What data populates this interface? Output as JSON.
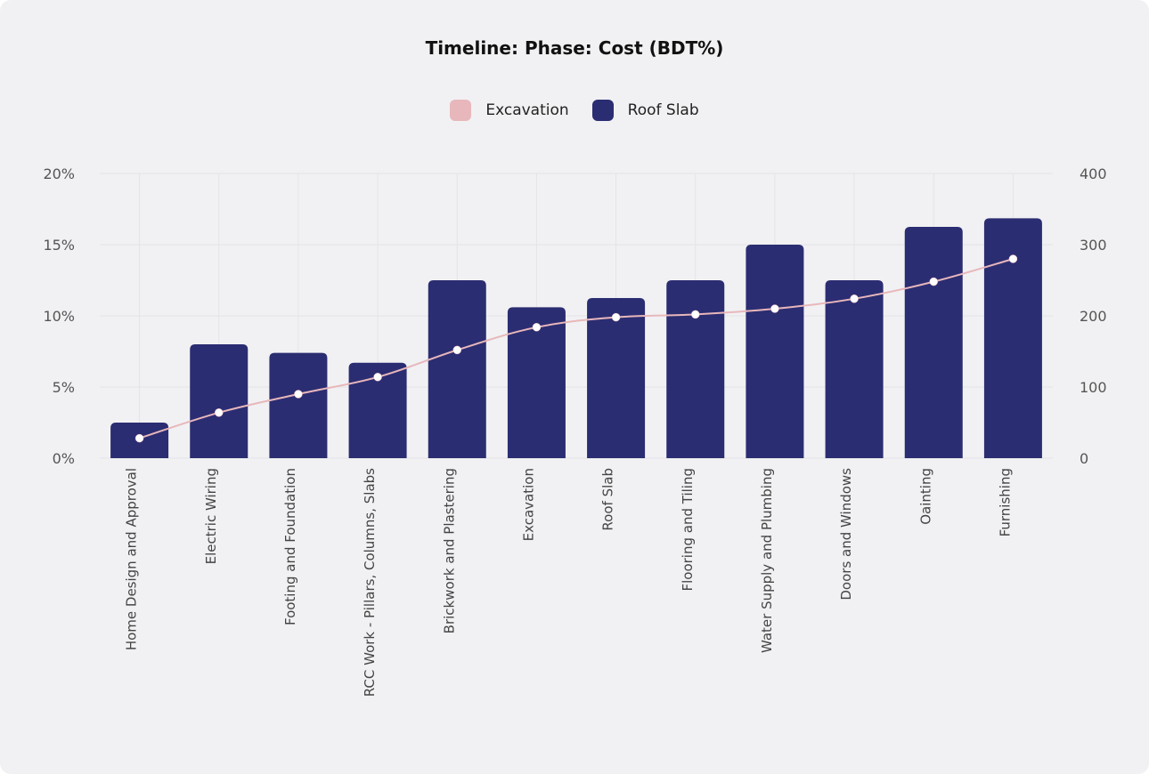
{
  "colors": {
    "background": "#f1f1f3",
    "bar": "#2b2d72",
    "line": "#e8b7bb",
    "point": "#ffffff",
    "grid": "#e4e4e8"
  },
  "chart_data": {
    "type": "bar",
    "title": "Timeline: Phase: Cost (BDT%)",
    "categories": [
      "Home Design and Approval",
      "Electric Wiring",
      "Footing and Foundation",
      "RCC Work - Pillars, Columns, Slabs",
      "Brickwork and Plastering",
      "Excavation",
      "Roof Slab",
      "Flooring and Tiling",
      "Water Supply and Plumbing",
      "Doors and Windows",
      "Oainting",
      "Furnishing"
    ],
    "series": [
      {
        "name": "Roof Slab",
        "type": "bar",
        "axis": "right",
        "color": "#2b2d72",
        "values": [
          50,
          160,
          148,
          134,
          250,
          212,
          225,
          250,
          300,
          250,
          325,
          337
        ]
      },
      {
        "name": "Excavation",
        "type": "line",
        "axis": "left",
        "color": "#e8b7bb",
        "values": [
          1.4,
          3.2,
          4.5,
          5.7,
          7.6,
          9.2,
          9.9,
          10.1,
          10.5,
          11.2,
          12.4,
          14.0
        ]
      }
    ],
    "y_left": {
      "ticks": [
        "0%",
        "5%",
        "10%",
        "15%",
        "20%"
      ],
      "ylim": [
        0,
        20
      ]
    },
    "y_right": {
      "ticks": [
        "0",
        "100",
        "200",
        "300",
        "400"
      ],
      "ylim": [
        0,
        400
      ]
    },
    "grid": true,
    "legend_position": "top-center"
  }
}
